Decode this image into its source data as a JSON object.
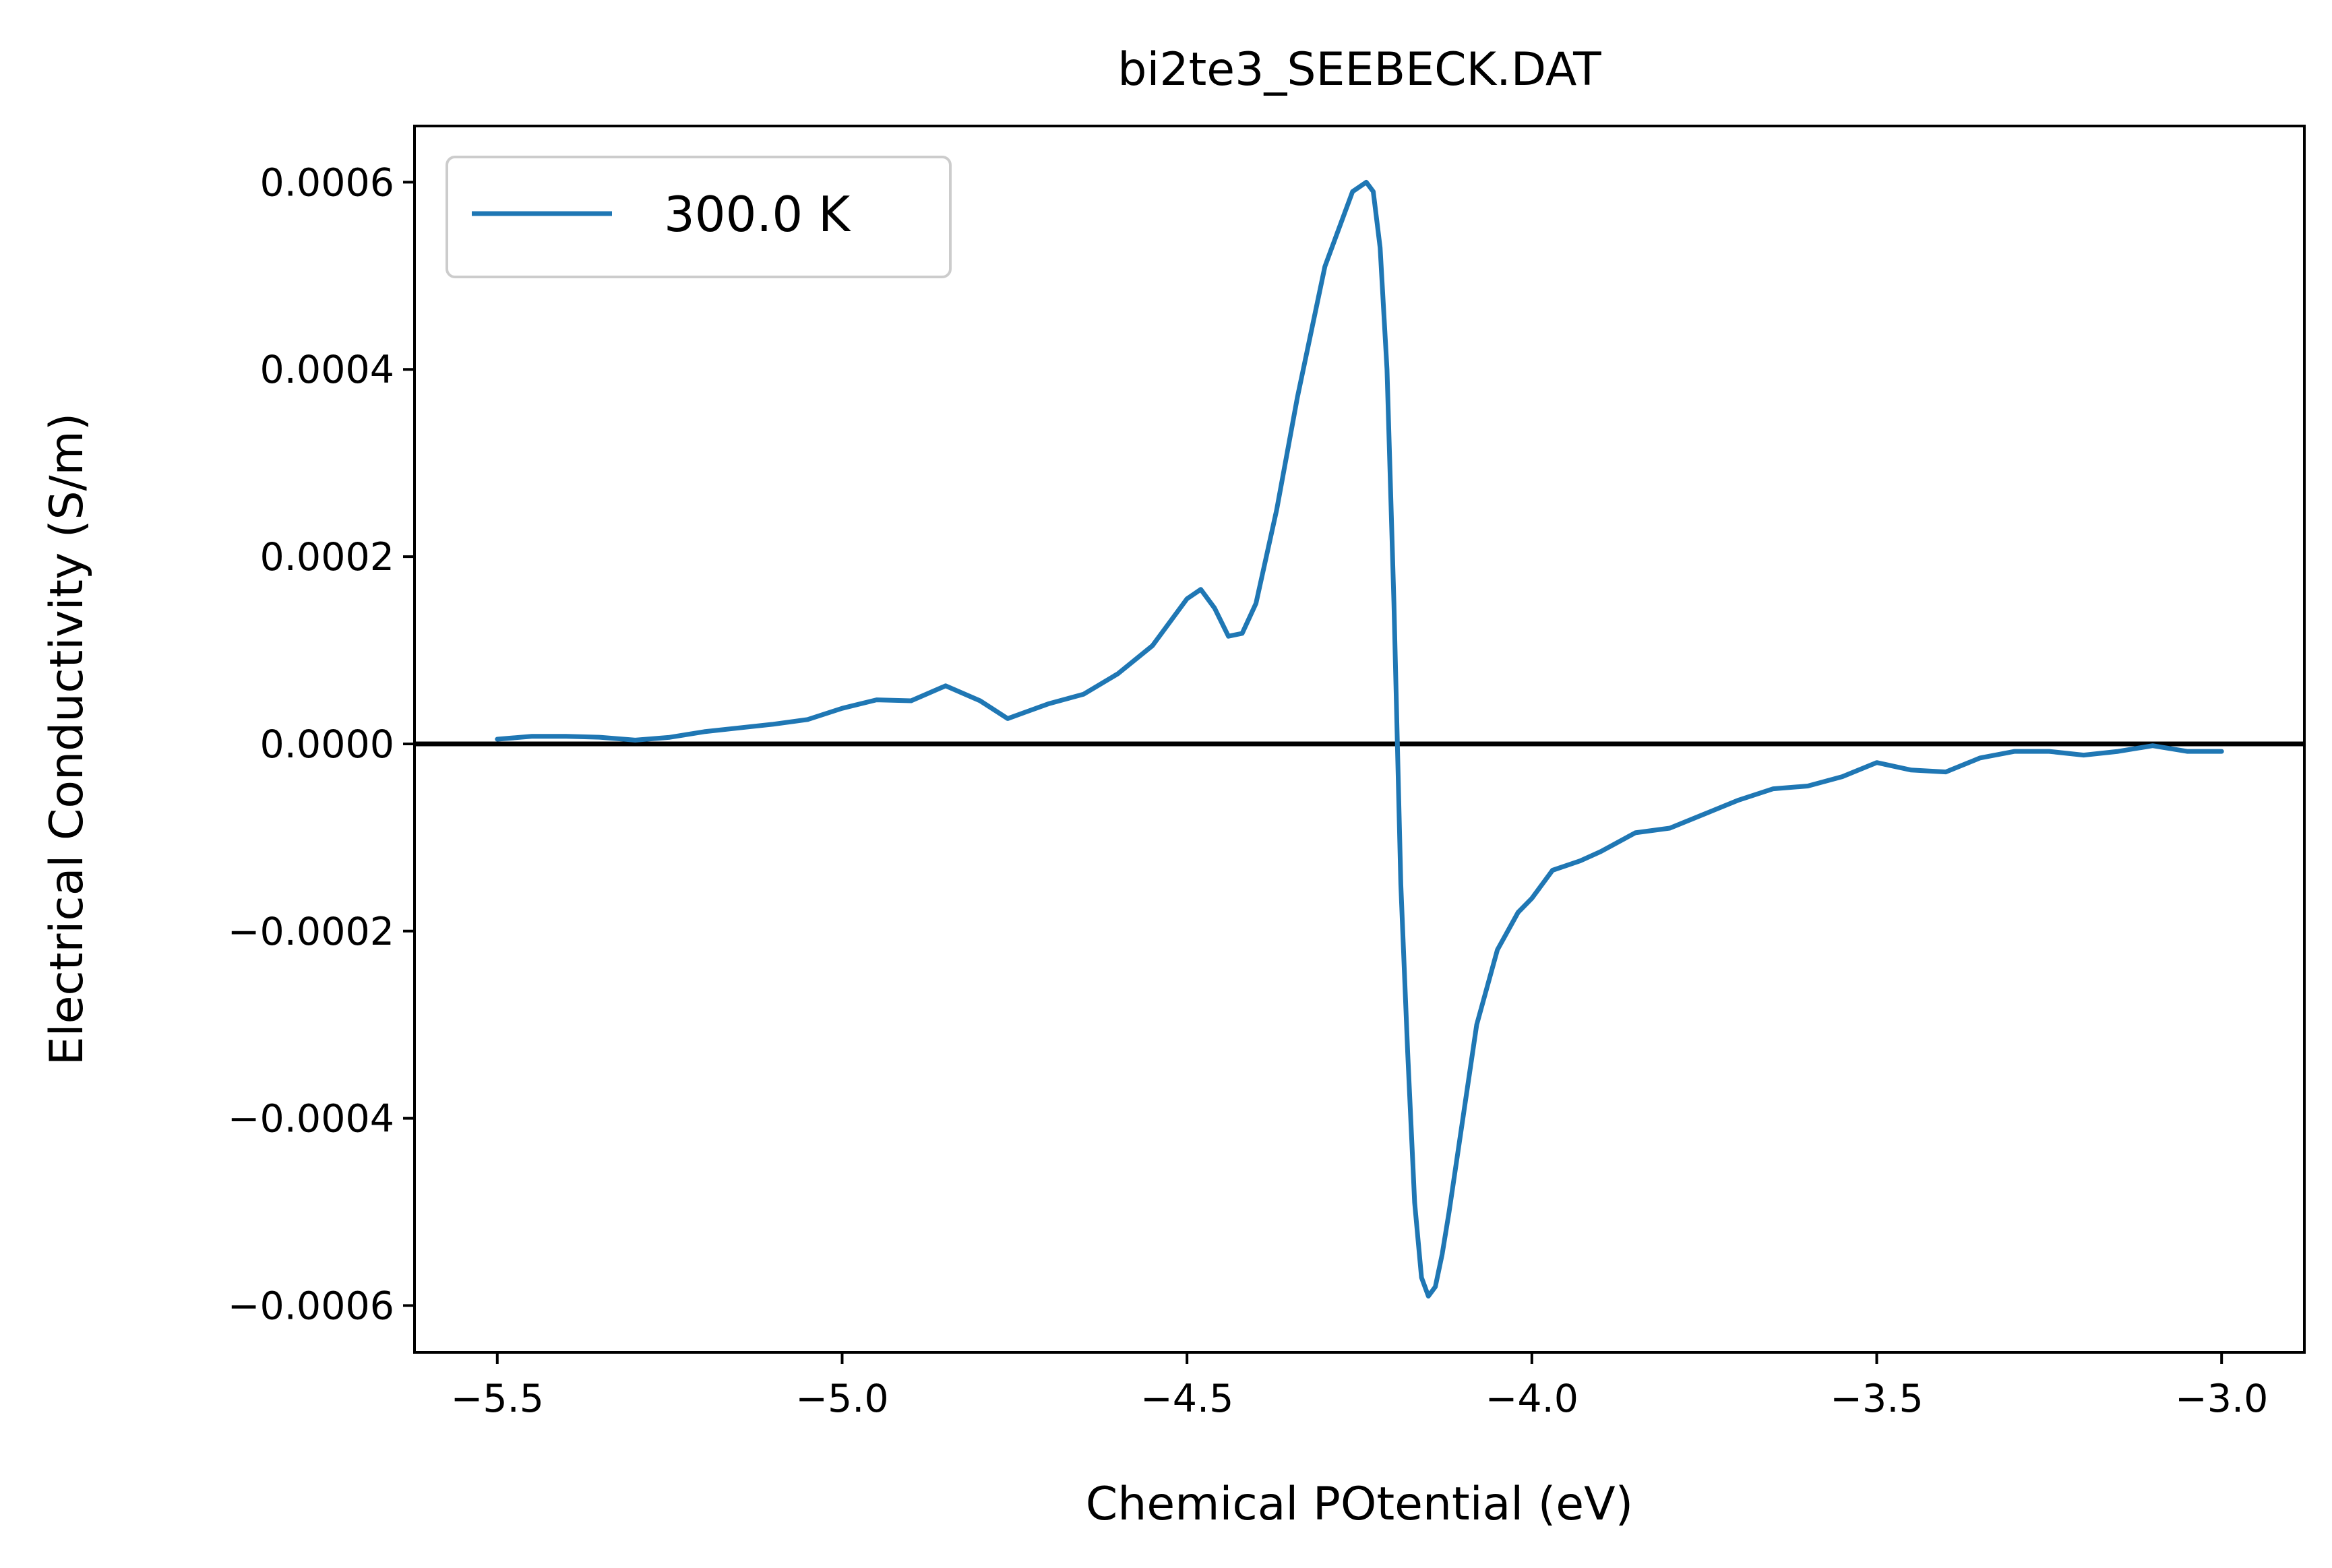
{
  "chart_data": {
    "type": "line",
    "title": "bi2te3_SEEBECK.DAT",
    "xlabel": "Chemical POtential (eV)",
    "ylabel": "Electrical Conductivity (S/m)",
    "xlim": [
      -5.62,
      -2.88
    ],
    "ylim": [
      -0.00065,
      0.00066
    ],
    "xticks": [
      -5.5,
      -5.0,
      -4.5,
      -4.0,
      -3.5,
      -3.0
    ],
    "xtick_labels": [
      "−5.5",
      "−5.0",
      "−4.5",
      "−4.0",
      "−3.5",
      "−3.0"
    ],
    "yticks": [
      0.0006,
      0.0004,
      0.0002,
      0.0,
      -0.0002,
      -0.0004,
      -0.0006
    ],
    "ytick_labels": [
      "0.0006",
      "0.0004",
      "0.0002",
      "0.0000",
      "−0.0002",
      "−0.0004",
      "−0.0006"
    ],
    "grid": false,
    "legend_position": "upper-left",
    "reference_line": {
      "y": 0.0,
      "color": "#000000"
    },
    "series": [
      {
        "name": "300.0 K",
        "color": "#1f77b4",
        "x": [
          -5.5,
          -5.45,
          -5.4,
          -5.35,
          -5.3,
          -5.25,
          -5.2,
          -5.15,
          -5.1,
          -5.05,
          -5.0,
          -4.95,
          -4.9,
          -4.85,
          -4.8,
          -4.76,
          -4.7,
          -4.65,
          -4.6,
          -4.55,
          -4.5,
          -4.48,
          -4.46,
          -4.44,
          -4.42,
          -4.4,
          -4.37,
          -4.34,
          -4.3,
          -4.26,
          -4.24,
          -4.23,
          -4.22,
          -4.21,
          -4.2,
          -4.19,
          -4.18,
          -4.17,
          -4.16,
          -4.15,
          -4.14,
          -4.13,
          -4.12,
          -4.1,
          -4.08,
          -4.05,
          -4.02,
          -4.0,
          -3.97,
          -3.93,
          -3.9,
          -3.85,
          -3.8,
          -3.75,
          -3.7,
          -3.65,
          -3.6,
          -3.55,
          -3.5,
          -3.45,
          -3.4,
          -3.35,
          -3.3,
          -3.25,
          -3.2,
          -3.15,
          -3.1,
          -3.05,
          -3.0
        ],
        "y": [
          5e-06,
          8e-06,
          8e-06,
          7e-06,
          4e-06,
          7e-06,
          1.3e-05,
          1.7e-05,
          2.1e-05,
          2.6e-05,
          3.8e-05,
          4.7e-05,
          4.6e-05,
          6.2e-05,
          4.6e-05,
          2.7e-05,
          4.3e-05,
          5.3e-05,
          7.5e-05,
          0.000105,
          0.000155,
          0.000165,
          0.000145,
          0.000115,
          0.000118,
          0.00015,
          0.00025,
          0.00037,
          0.00051,
          0.00059,
          0.0006,
          0.00059,
          0.00053,
          0.0004,
          0.00015,
          -0.00015,
          -0.00033,
          -0.00049,
          -0.00057,
          -0.00059,
          -0.00058,
          -0.000545,
          -0.0005,
          -0.0004,
          -0.0003,
          -0.00022,
          -0.00018,
          -0.000165,
          -0.000135,
          -0.000125,
          -0.000115,
          -9.5e-05,
          -9e-05,
          -7.5e-05,
          -6e-05,
          -4.8e-05,
          -4.5e-05,
          -3.5e-05,
          -2e-05,
          -2.8e-05,
          -3e-05,
          -1.5e-05,
          -8e-06,
          -8e-06,
          -1.2e-05,
          -8e-06,
          -2e-06,
          -8e-06,
          -8e-06
        ]
      }
    ]
  }
}
